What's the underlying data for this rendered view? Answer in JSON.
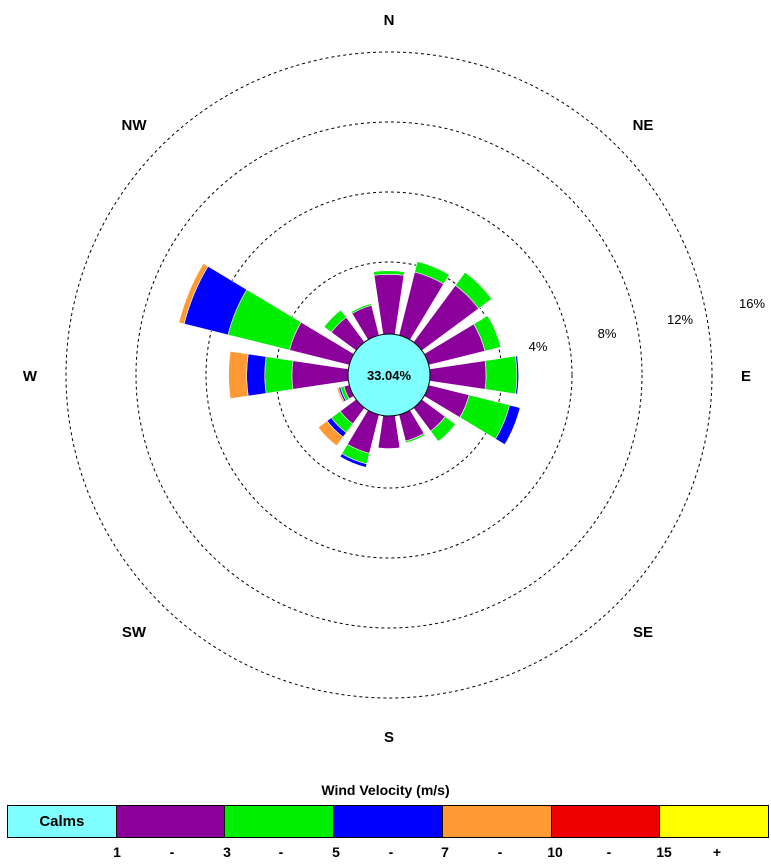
{
  "chart_data": {
    "type": "wind_rose",
    "title": "",
    "directions": [
      "N",
      "NE",
      "E",
      "SE",
      "S",
      "SW",
      "W",
      "NW"
    ],
    "ring_labels": [
      "4%",
      "8%",
      "12%",
      "16%"
    ],
    "rings": [
      4,
      8,
      12,
      16
    ],
    "calms": {
      "label": "Calms",
      "value": "33.04%"
    },
    "legend": {
      "title": "Wind Velocity (m/s)",
      "bins": [
        {
          "name": "Calms",
          "color": "#7fffff"
        },
        {
          "name": "1-3",
          "color": "#8b009b"
        },
        {
          "name": "3-5",
          "color": "#00ee00"
        },
        {
          "name": "5-7",
          "color": "#0000ff"
        },
        {
          "name": "7-10",
          "color": "#ff9933"
        },
        {
          "name": "10-15",
          "color": "#ee0000"
        },
        {
          "name": "15+",
          "color": "#ffff00"
        }
      ],
      "tick_labels": [
        "1",
        "-",
        "3",
        "-",
        "5",
        "-",
        "7",
        "-",
        "10",
        "-",
        "15",
        "+"
      ]
    },
    "sectors_deg": [
      0,
      22.5,
      45,
      67.5,
      90,
      112.5,
      135,
      157.5,
      180,
      202.5,
      225,
      247.5,
      270,
      292.5,
      315,
      337.5
    ],
    "series": [
      {
        "name": "1-3",
        "values": [
          3.3,
          3.6,
          3.9,
          3.2,
          3.1,
          2.3,
          1.6,
          1.5,
          1.8,
          2.2,
          1.1,
          0.3,
          3.1,
          3.4,
          1.7,
          1.7
        ]
      },
      {
        "name": "3-5",
        "values": [
          0.2,
          0.6,
          0.9,
          0.9,
          1.7,
          2.3,
          0.7,
          0.1,
          0.0,
          0.6,
          0.6,
          0.2,
          1.5,
          3.5,
          0.5,
          0.1
        ]
      },
      {
        "name": "5-7",
        "values": [
          0.0,
          0.0,
          0.0,
          0.0,
          0.1,
          0.6,
          0.0,
          0.0,
          0.0,
          0.2,
          0.3,
          0.1,
          1.0,
          2.5,
          0.0,
          0.0
        ]
      },
      {
        "name": "7-10",
        "values": [
          0.0,
          0.0,
          0.0,
          0.0,
          0.0,
          0.0,
          0.0,
          0.0,
          0.0,
          0.0,
          0.6,
          0.1,
          1.0,
          0.3,
          0.0,
          0.0
        ]
      },
      {
        "name": "10-15",
        "values": [
          0,
          0,
          0,
          0,
          0,
          0,
          0,
          0,
          0,
          0,
          0,
          0,
          0,
          0,
          0,
          0
        ]
      },
      {
        "name": "15+",
        "values": [
          0,
          0,
          0,
          0,
          0,
          0,
          0,
          0,
          0,
          0,
          0,
          0,
          0,
          0,
          0,
          0
        ]
      }
    ]
  }
}
